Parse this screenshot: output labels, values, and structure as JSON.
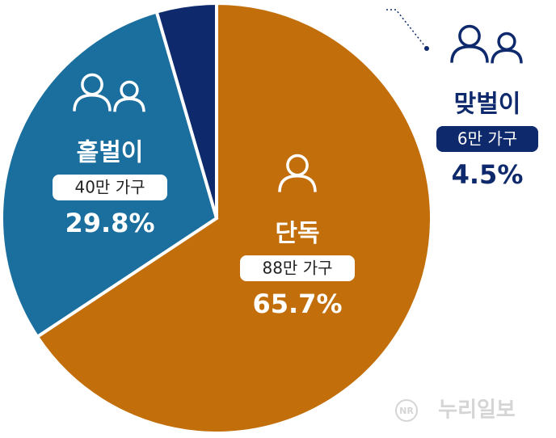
{
  "chart_data": {
    "type": "pie",
    "categories": [
      "단독",
      "홑벌이",
      "맞벌이"
    ],
    "values": [
      65.7,
      29.8,
      4.5
    ],
    "value_labels": [
      "65.7%",
      "29.8%",
      "4.5%"
    ],
    "household_labels": [
      "88만 가구",
      "40만 가구",
      "6만 가구"
    ],
    "colors": [
      "#c26e0b",
      "#1b6f9e",
      "#0e2a6c"
    ],
    "start_angle": 0,
    "direction": "clockwise"
  },
  "watermark": {
    "logo": "NR",
    "text": "누리일보"
  }
}
